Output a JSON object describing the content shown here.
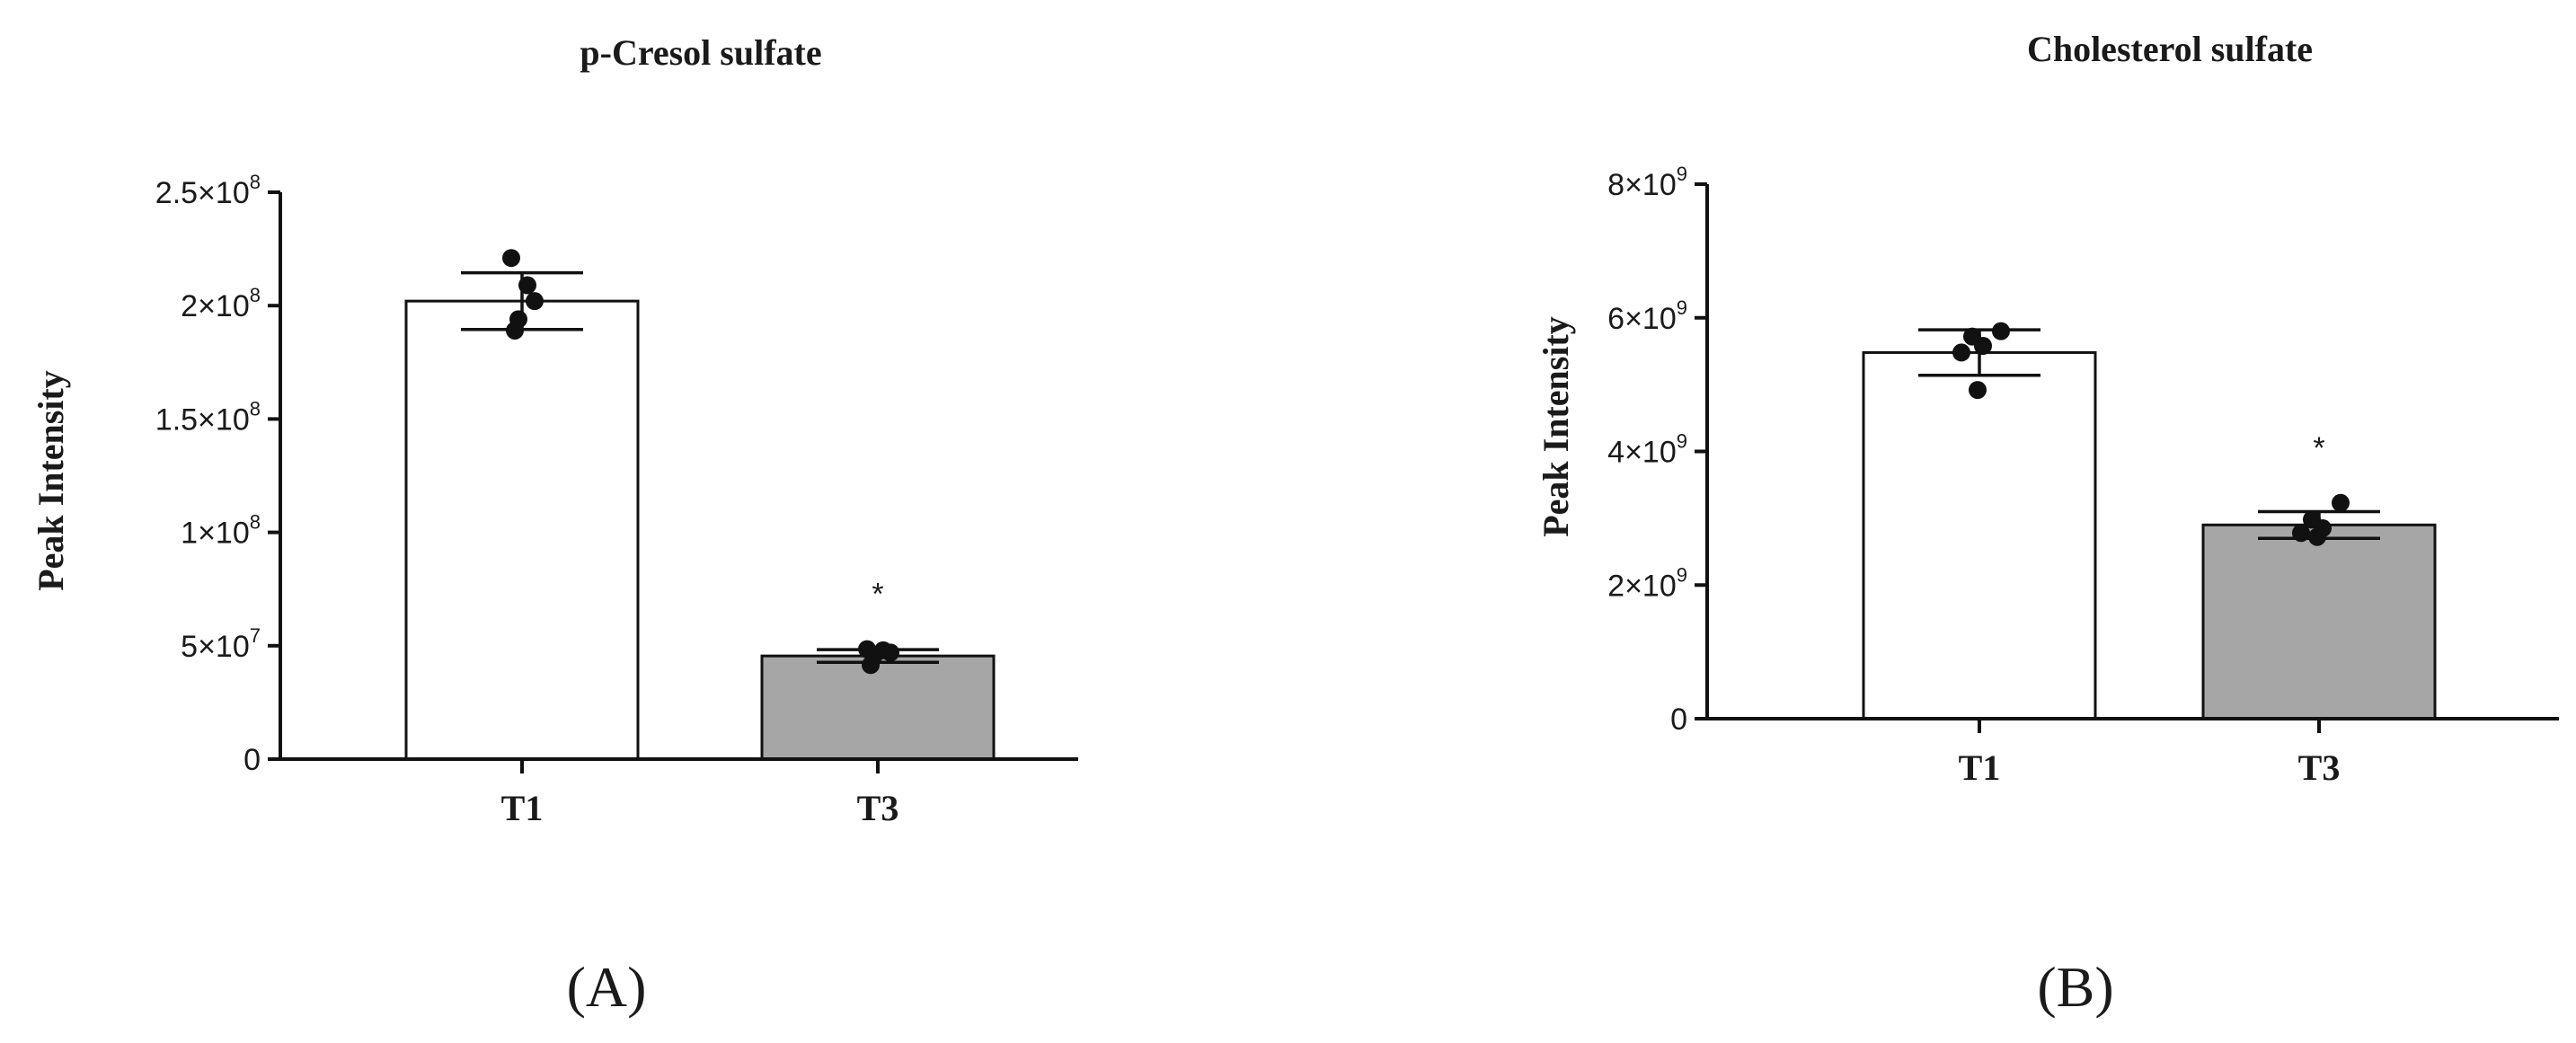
{
  "colors": {
    "bar_T1": "#ffffff",
    "bar_T3": "#a6a6a6",
    "ink": "#111111"
  },
  "chart_data": [
    {
      "type": "bar",
      "title": "p-Cresol sulfate",
      "ylabel": "Peak Intensity",
      "xlabel": "",
      "panel_label": "(A)",
      "categories": [
        "T1",
        "T3"
      ],
      "values": [
        202000000,
        45500000
      ],
      "error": [
        12500000,
        2800000
      ],
      "points": [
        [
          221000000,
          209000000,
          202000000,
          194000000,
          189000000
        ],
        [
          48500000,
          48000000,
          47000000,
          46000000,
          41500000
        ]
      ],
      "significance": [
        "",
        "*"
      ],
      "ylim": [
        0,
        250000000
      ],
      "yticks": [
        {
          "value": 0,
          "mant": "0",
          "exp": ""
        },
        {
          "value": 50000000,
          "mant": "5×10",
          "exp": "7"
        },
        {
          "value": 100000000,
          "mant": "1×10",
          "exp": "8"
        },
        {
          "value": 150000000,
          "mant": "1.5×10",
          "exp": "8"
        },
        {
          "value": 200000000,
          "mant": "2×10",
          "exp": "8"
        },
        {
          "value": 250000000,
          "mant": "2.5×10",
          "exp": "8"
        }
      ]
    },
    {
      "type": "bar",
      "title": "Cholesterol sulfate",
      "ylabel": "Peak Intensity",
      "xlabel": "",
      "panel_label": "(B)",
      "categories": [
        "T1",
        "T3"
      ],
      "values": [
        5480000000,
        2900000000
      ],
      "error": [
        340000000,
        200000000
      ],
      "points": [
        [
          5800000000,
          5720000000,
          5580000000,
          5480000000,
          4920000000
        ],
        [
          3230000000,
          2980000000,
          2850000000,
          2780000000,
          2720000000
        ]
      ],
      "significance": [
        "",
        "*"
      ],
      "ylim": [
        0,
        8000000000
      ],
      "yticks": [
        {
          "value": 0,
          "mant": "0",
          "exp": ""
        },
        {
          "value": 2000000000,
          "mant": "2×10",
          "exp": "9"
        },
        {
          "value": 4000000000,
          "mant": "4×10",
          "exp": "9"
        },
        {
          "value": 6000000000,
          "mant": "6×10",
          "exp": "9"
        },
        {
          "value": 8000000000,
          "mant": "8×10",
          "exp": "9"
        }
      ]
    }
  ]
}
